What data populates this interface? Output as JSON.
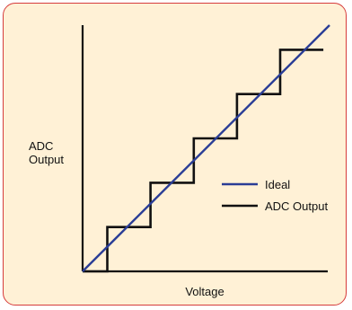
{
  "chart_data": {
    "type": "line",
    "title": "",
    "ylabel_lines": [
      "ADC",
      "Output"
    ],
    "xlabel": "Voltage",
    "xlim": [
      0,
      10
    ],
    "ylim": [
      0,
      10
    ],
    "grid": false,
    "legend_placement": "center-right",
    "series": [
      {
        "name": "Ideal",
        "color": "#2a3d96",
        "x": [
          0,
          10
        ],
        "y": [
          0,
          10
        ]
      },
      {
        "name": "ADC Output",
        "color": "#111111",
        "step": true,
        "x": [
          0,
          1,
          1,
          2.75,
          2.75,
          4.5,
          4.5,
          6.25,
          6.25,
          8,
          8,
          9.75
        ],
        "y": [
          0,
          0,
          1.8,
          1.8,
          3.6,
          3.6,
          5.4,
          5.4,
          7.2,
          7.2,
          9,
          9
        ]
      }
    ]
  },
  "colors": {
    "background": "#fff1d6",
    "border": "#d63c3c",
    "axis": "#111111"
  }
}
